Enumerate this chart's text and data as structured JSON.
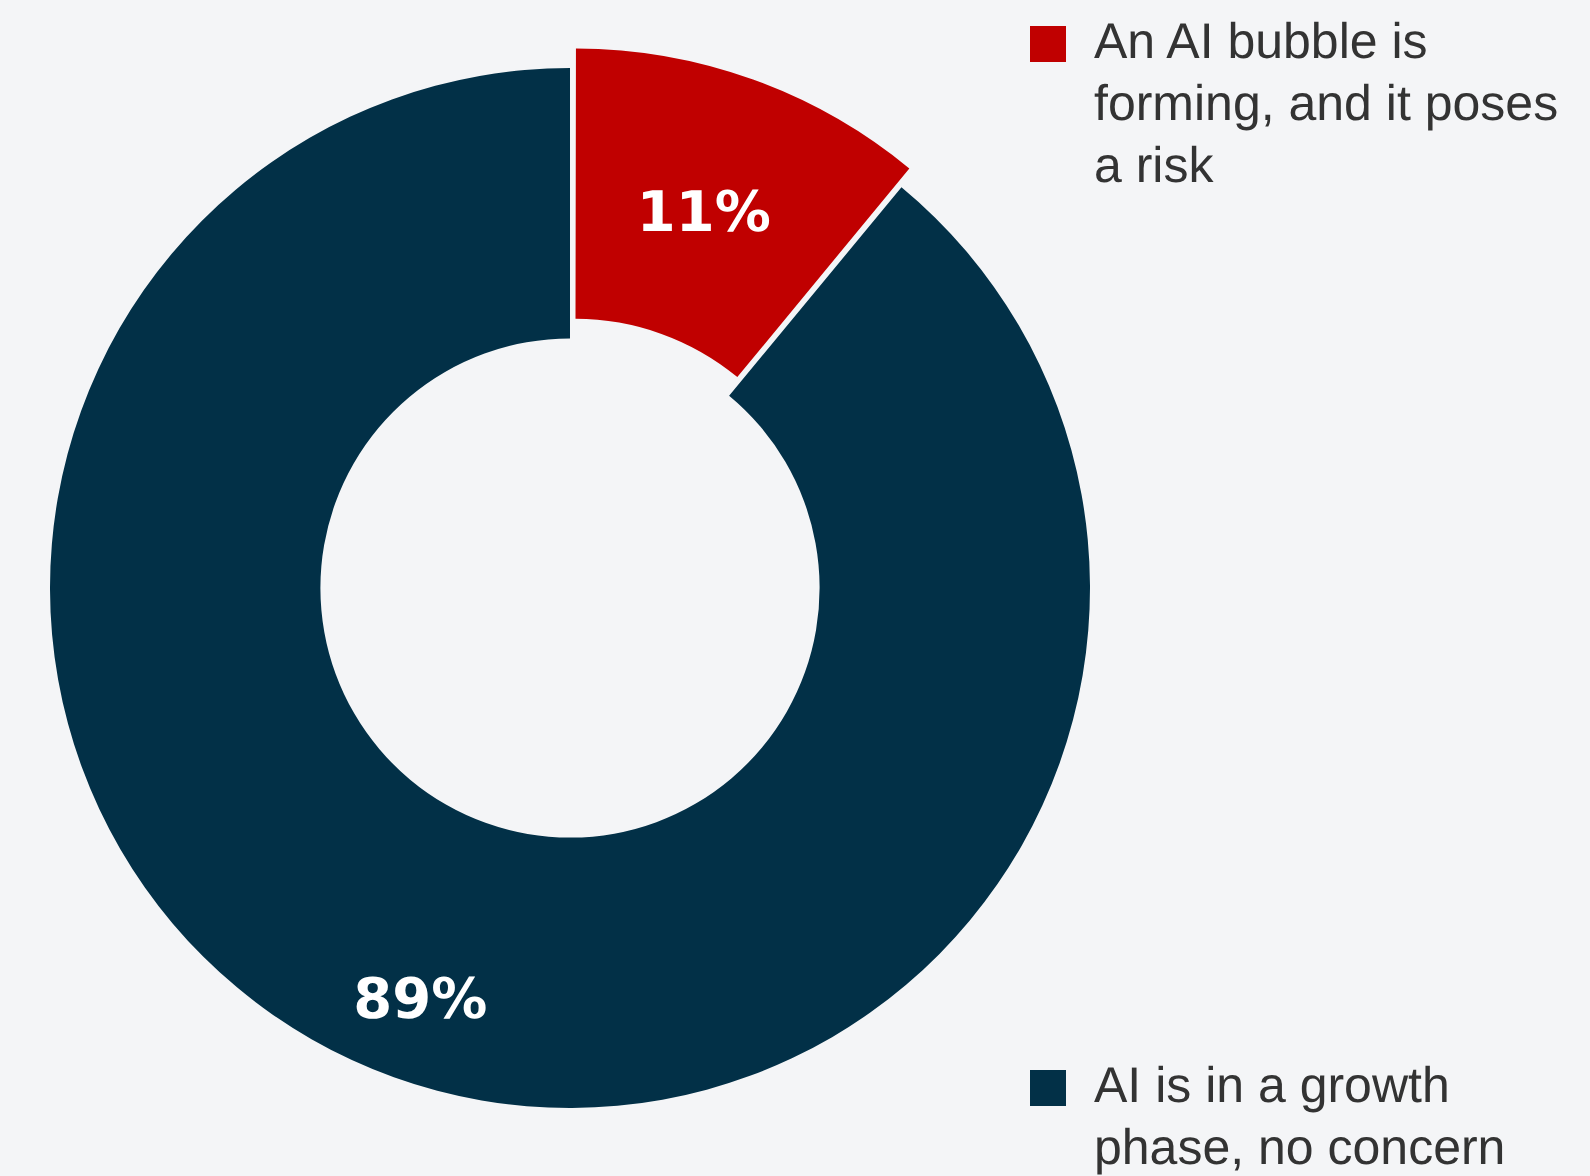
{
  "chart_data": {
    "type": "donut",
    "categories": [
      "An AI bubble is forming, and it poses a risk",
      "AI is in a growth phase, no concern"
    ],
    "values": [
      11,
      89
    ],
    "colors": [
      "#c00000",
      "#023047"
    ],
    "value_labels": [
      "11%",
      "89%"
    ],
    "legend": "right"
  }
}
